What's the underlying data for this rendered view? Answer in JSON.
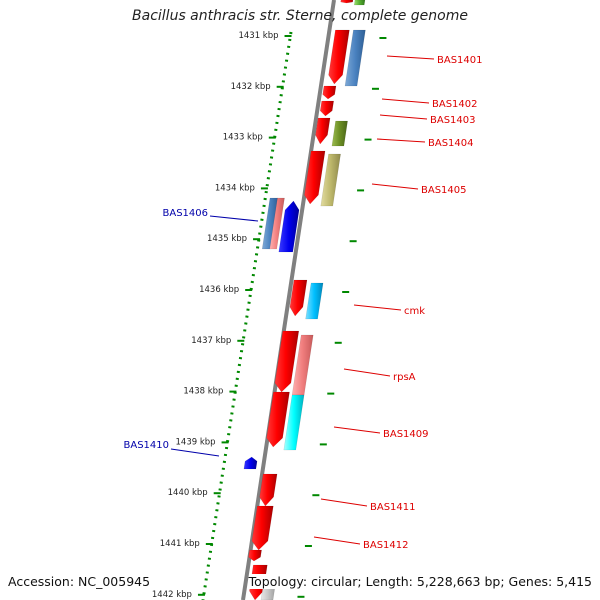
{
  "title": "Bacillus anthracis str. Sterne, complete genome",
  "footer": {
    "accession": "Accession: NC_005945",
    "summary": "Topology: circular; Length: 5,228,663 bp; Genes: 5,415"
  },
  "scale_labels": [
    "1431 kbp",
    "1432 kbp",
    "1433 kbp",
    "1434 kbp",
    "1435 kbp",
    "1436 kbp",
    "1437 kbp",
    "1438 kbp",
    "1439 kbp",
    "1440 kbp",
    "1441 kbp",
    "1442 kbp"
  ],
  "colors": {
    "forward_label": "#dd0000",
    "reverse_label": "#0000aa",
    "scale_dots": "#008800",
    "backbone": "#808080"
  },
  "forward_genes": [
    "BAS1401",
    "BAS1402",
    "BAS1403",
    "BAS1404",
    "BAS1405",
    "cmk",
    "rpsA",
    "BAS1409",
    "BAS1411",
    "BAS1412"
  ],
  "reverse_genes": [
    "BAS1406",
    "BAS1410"
  ]
}
